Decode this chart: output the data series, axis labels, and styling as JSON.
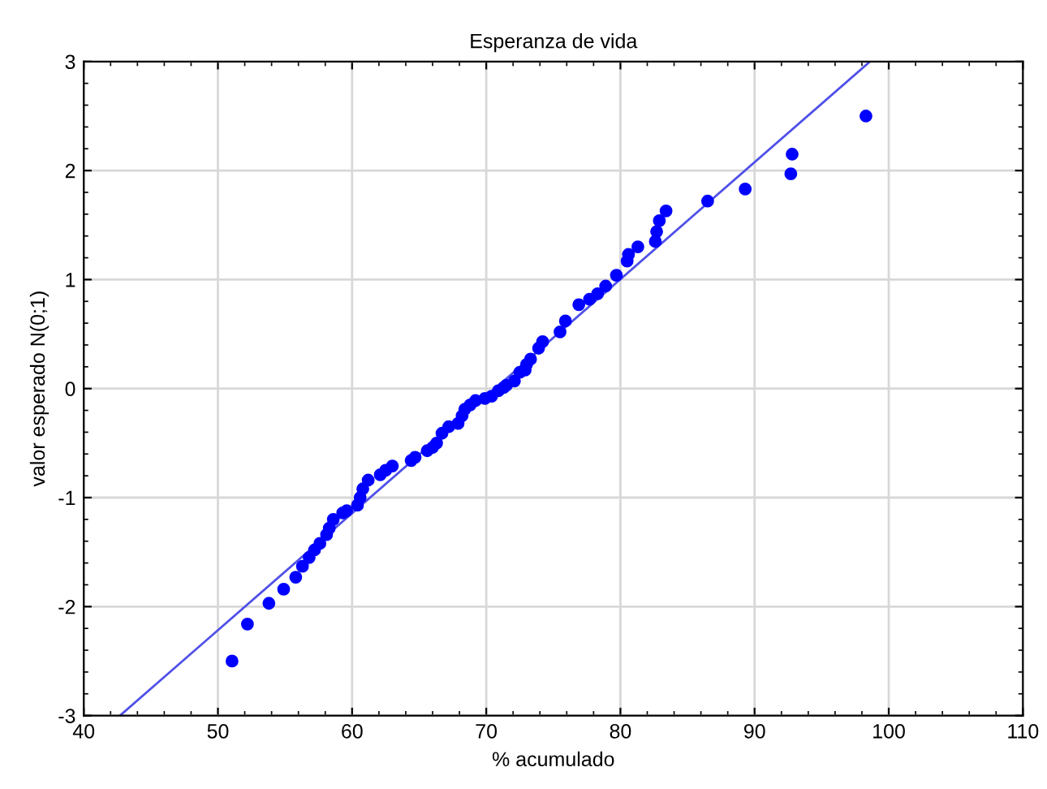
{
  "chart_data": {
    "type": "scatter",
    "title": "Esperanza de vida",
    "xlabel": "% acumulado",
    "ylabel": "valor esperado N(0;1)",
    "series": [
      {
        "marker": "circle",
        "color": "#0000ff",
        "x": [
          51.05,
          52.2,
          53.8,
          54.9,
          55.8,
          56.3,
          56.8,
          57.2,
          57.6,
          58.1,
          58.3,
          58.6,
          59.3,
          59.6,
          60.4,
          60.6,
          60.8,
          61.2,
          62.1,
          62.5,
          63.0,
          64.4,
          64.7,
          65.6,
          66.0,
          66.3,
          66.7,
          67.2,
          67.9,
          68.2,
          68.4,
          68.8,
          69.2,
          69.9,
          70.4,
          70.9,
          71.3,
          71.5,
          72.1,
          72.5,
          72.9,
          73.0,
          73.3,
          73.9,
          74.2,
          75.5,
          75.9,
          76.9,
          77.7,
          78.3,
          78.9,
          79.7,
          80.5,
          80.6,
          81.3,
          82.6,
          82.7,
          82.9,
          83.4,
          86.5,
          89.3,
          92.7,
          92.8,
          98.3
        ],
        "values": [
          -2.5,
          -2.16,
          -1.97,
          -1.84,
          -1.73,
          -1.63,
          -1.55,
          -1.48,
          -1.42,
          -1.34,
          -1.28,
          -1.2,
          -1.14,
          -1.12,
          -1.07,
          -1.0,
          -0.92,
          -0.84,
          -0.79,
          -0.75,
          -0.71,
          -0.66,
          -0.63,
          -0.57,
          -0.54,
          -0.5,
          -0.41,
          -0.35,
          -0.32,
          -0.25,
          -0.19,
          -0.15,
          -0.11,
          -0.09,
          -0.07,
          -0.02,
          0.01,
          0.03,
          0.07,
          0.15,
          0.17,
          0.22,
          0.27,
          0.37,
          0.43,
          0.52,
          0.62,
          0.77,
          0.82,
          0.87,
          0.94,
          1.04,
          1.17,
          1.23,
          1.3,
          1.35,
          1.44,
          1.54,
          1.63,
          1.72,
          1.83,
          1.97,
          2.15,
          2.5
        ]
      },
      {
        "type": "line",
        "color": "#5050e8",
        "x": [
          42.7,
          98.6
        ],
        "values": [
          -3,
          3
        ]
      }
    ],
    "xlim": [
      40,
      110
    ],
    "xticks": [
      40,
      50,
      60,
      70,
      80,
      90,
      100,
      110
    ],
    "ylim": [
      -3,
      3
    ],
    "yticks": [
      -3,
      -2,
      -1,
      0,
      1,
      2,
      3
    ],
    "grid": true
  }
}
